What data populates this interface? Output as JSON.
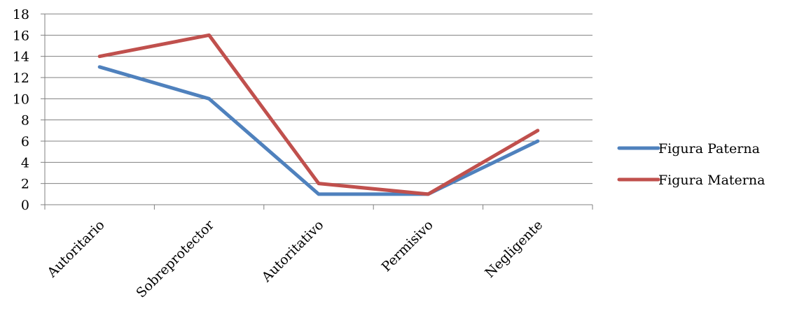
{
  "chart_data": {
    "type": "line",
    "categories": [
      "Autoritario",
      "Sobreprotector",
      "Autoritativo",
      "Permisivo",
      "Negligente"
    ],
    "series": [
      {
        "name": "Figura Paterna",
        "color": "#4F81BD",
        "values": [
          13,
          10,
          1,
          1,
          6
        ]
      },
      {
        "name": "Figura Materna",
        "color": "#C0504D",
        "values": [
          14,
          16,
          2,
          1,
          7
        ]
      }
    ],
    "ylim": [
      0,
      18
    ],
    "yticks": [
      0,
      2,
      4,
      6,
      8,
      10,
      12,
      14,
      16,
      18
    ],
    "grid": true,
    "legend_position": "right"
  }
}
